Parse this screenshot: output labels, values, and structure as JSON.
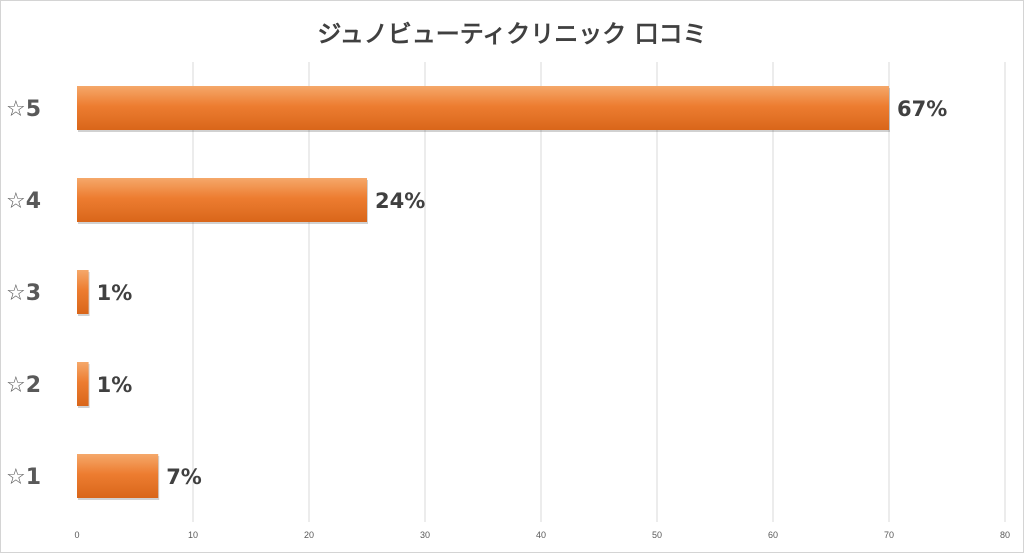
{
  "chart_data": {
    "type": "bar",
    "orientation": "horizontal",
    "title": "ジュノビューティクリニック 口コミ",
    "categories": [
      "☆5",
      "☆4",
      "☆3",
      "☆2",
      "☆1"
    ],
    "values": [
      70,
      25,
      1,
      1,
      7
    ],
    "data_labels": [
      "67%",
      "24%",
      "1%",
      "1%",
      "7%"
    ],
    "xlim": [
      0,
      80
    ],
    "xticks": [
      0,
      10,
      20,
      30,
      40,
      50,
      60,
      70,
      80
    ],
    "grid": true,
    "legend": "none",
    "xlabel": "",
    "ylabel": ""
  },
  "colors": {
    "bar_top": "#f5a86a",
    "bar_mid": "#ed7d31",
    "bar_bottom": "#d9661a",
    "grid": "#d9d9d9"
  }
}
